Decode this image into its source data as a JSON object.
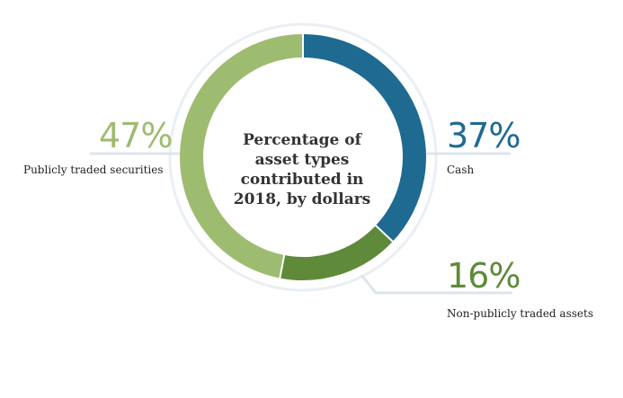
{
  "chart_data": {
    "type": "pie",
    "title": "Percentage of asset types contributed in 2018, by dollars",
    "slices": [
      {
        "label": "Cash",
        "value": 37,
        "display": "37%",
        "color": "#1f6a91"
      },
      {
        "label": "Non-publicly traded assets",
        "value": 16,
        "display": "16%",
        "color": "#5e8a3a"
      },
      {
        "label": "Publicly traded securities",
        "value": 47,
        "display": "47%",
        "color": "#9ebc70"
      }
    ],
    "donut": true,
    "start_angle": "top, clockwise",
    "legend": "labels beside slices"
  }
}
